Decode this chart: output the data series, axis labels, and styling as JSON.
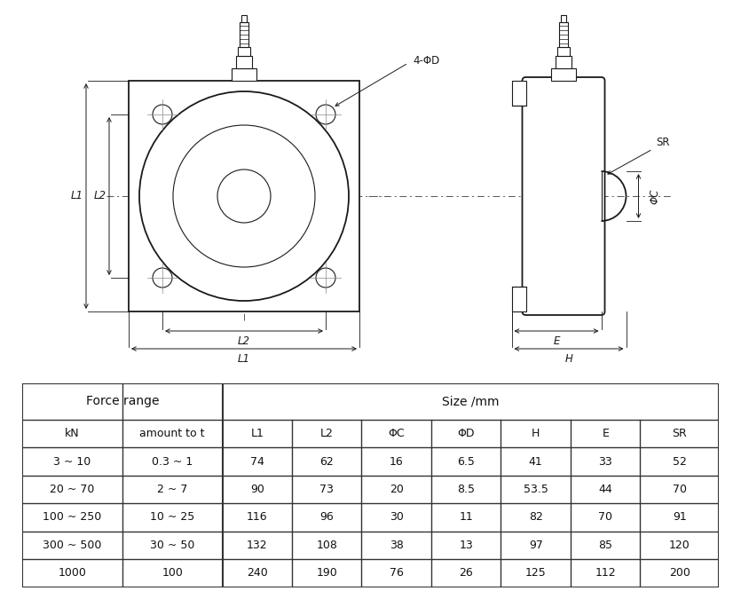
{
  "bg_color": "#ffffff",
  "line_color": "#1a1a1a",
  "dim_color": "#1a1a1a",
  "table_data": [
    [
      "3 ~ 10",
      "0.3 ~ 1",
      "74",
      "62",
      "16",
      "6.5",
      "41",
      "33",
      "52"
    ],
    [
      "20 ~ 70",
      "2 ~ 7",
      "90",
      "73",
      "20",
      "8.5",
      "53.5",
      "44",
      "70"
    ],
    [
      "100 ~ 250",
      "10 ~ 25",
      "116",
      "96",
      "30",
      "11",
      "82",
      "70",
      "91"
    ],
    [
      "300 ~ 500",
      "30 ~ 50",
      "132",
      "108",
      "38",
      "13",
      "97",
      "85",
      "120"
    ],
    [
      "1000",
      "100",
      "240",
      "190",
      "76",
      "26",
      "125",
      "112",
      "200"
    ]
  ],
  "header1": [
    "Force range",
    "Size /mm"
  ],
  "header2": [
    "kN",
    "amount to t",
    "L1",
    "L2",
    "ΦC",
    "ΦD",
    "H",
    "E",
    "SR"
  ]
}
